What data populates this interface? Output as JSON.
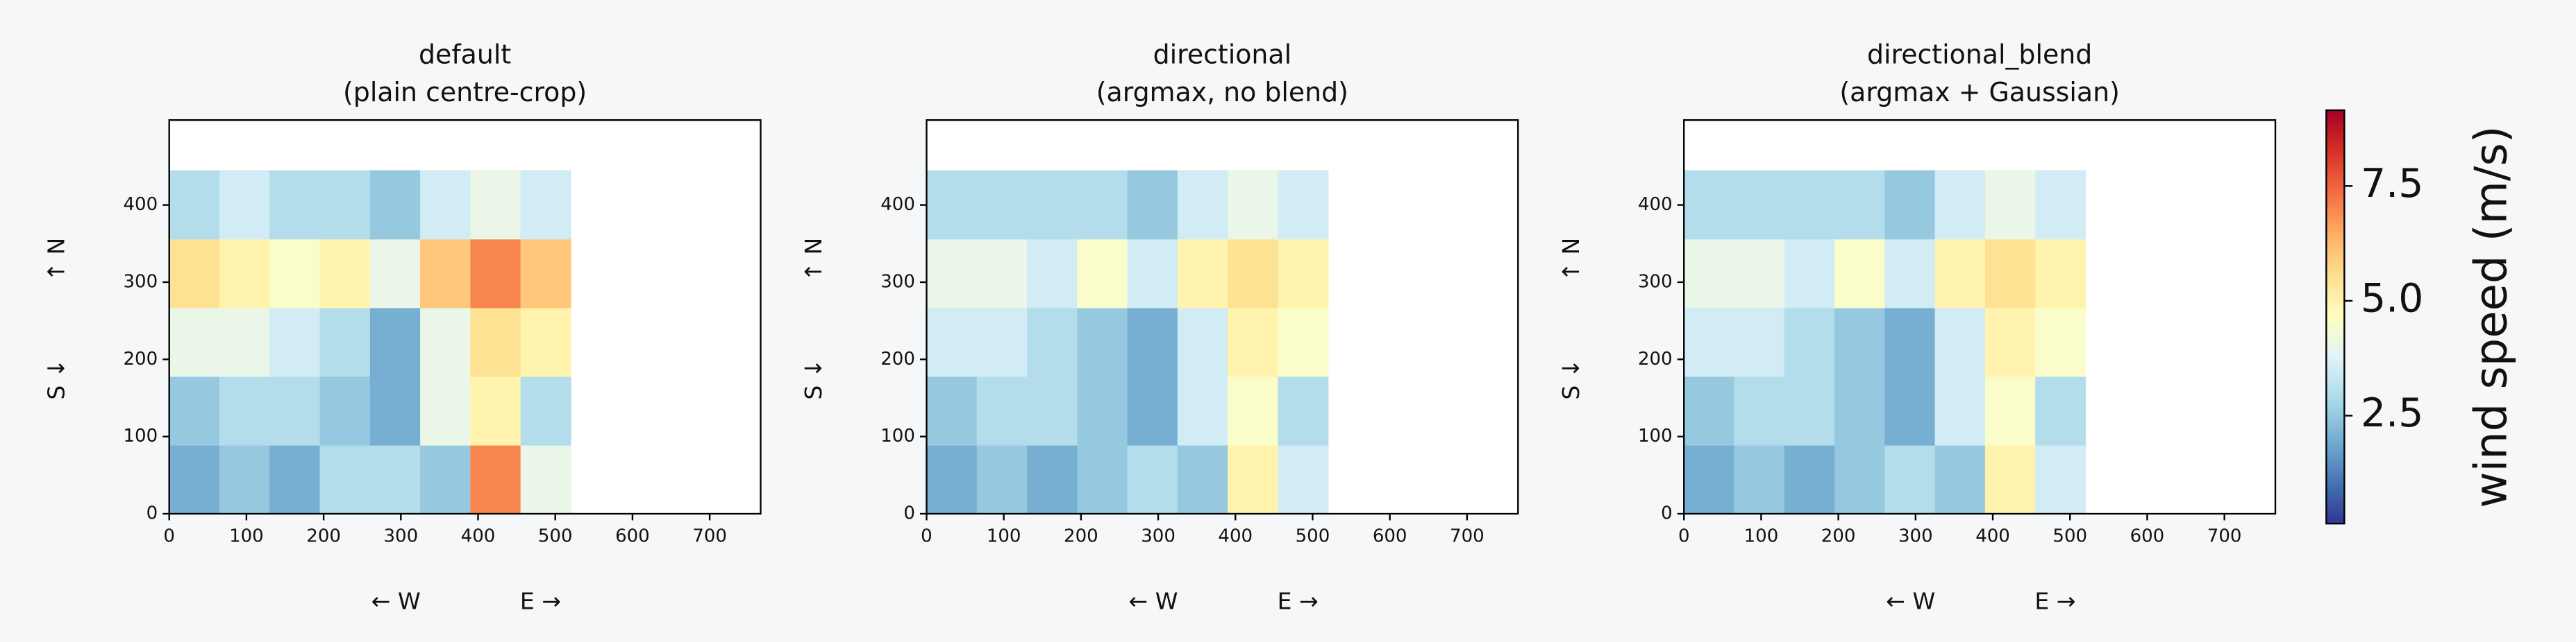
{
  "chart_data": [
    {
      "type": "heatmap",
      "title": [
        "default",
        "(plain centre-crop)"
      ],
      "xlabels": [
        "← W",
        "E →"
      ],
      "ylabels": [
        "S ↓",
        "↑ N"
      ],
      "x": [
        32.5,
        97.5,
        162.5,
        227.5,
        292.5,
        357.5,
        422.5,
        487.5
      ],
      "y": [
        44.5,
        133.5,
        222.5,
        311.5,
        400.5
      ],
      "z": [
        [
          2,
          2.5,
          2,
          3,
          3,
          2.5,
          7,
          4
        ],
        [
          2.5,
          3,
          3,
          2.5,
          2,
          4,
          5,
          3
        ],
        [
          4,
          4,
          3.5,
          3,
          2,
          4,
          5.5,
          5
        ],
        [
          5.5,
          5,
          4.5,
          5,
          4,
          6,
          7,
          6
        ],
        [
          3,
          3.5,
          3,
          3,
          2.5,
          3.5,
          4,
          3.5
        ]
      ],
      "xlim": [
        0,
        766
      ],
      "ylim": [
        0,
        510
      ],
      "xticks": [
        0,
        100,
        200,
        300,
        400,
        500,
        600,
        700
      ],
      "yticks": [
        0,
        100,
        200,
        300,
        400
      ]
    },
    {
      "type": "heatmap",
      "title": [
        "directional",
        "(argmax, no blend)"
      ],
      "xlabels": [
        "← W",
        "E →"
      ],
      "ylabels": [
        "S ↓",
        "↑ N"
      ],
      "x": [
        32.5,
        97.5,
        162.5,
        227.5,
        292.5,
        357.5,
        422.5,
        487.5
      ],
      "y": [
        44.5,
        133.5,
        222.5,
        311.5,
        400.5
      ],
      "z": [
        [
          2,
          2.5,
          2,
          2.5,
          3,
          2.5,
          5,
          3.5
        ],
        [
          2.5,
          3,
          3,
          2.5,
          2,
          3.5,
          4.5,
          3
        ],
        [
          3.5,
          3.5,
          3,
          2.5,
          2,
          3.5,
          5,
          4.5
        ],
        [
          4,
          4,
          3.5,
          4.5,
          3.5,
          5,
          5.5,
          5
        ],
        [
          3,
          3,
          3,
          3,
          2.5,
          3.5,
          4,
          3.5
        ]
      ],
      "xlim": [
        0,
        766
      ],
      "ylim": [
        0,
        510
      ],
      "xticks": [
        0,
        100,
        200,
        300,
        400,
        500,
        600,
        700
      ],
      "yticks": [
        0,
        100,
        200,
        300,
        400
      ]
    },
    {
      "type": "heatmap",
      "title": [
        "directional_blend",
        "(argmax + Gaussian)"
      ],
      "xlabels": [
        "← W",
        "E →"
      ],
      "ylabels": [
        "S ↓",
        "↑ N"
      ],
      "x": [
        32.5,
        97.5,
        162.5,
        227.5,
        292.5,
        357.5,
        422.5,
        487.5
      ],
      "y": [
        44.5,
        133.5,
        222.5,
        311.5,
        400.5
      ],
      "z": [
        [
          2,
          2.5,
          2,
          2.5,
          3,
          2.5,
          5,
          3.5
        ],
        [
          2.5,
          3,
          3,
          2.5,
          2,
          3.5,
          4.5,
          3
        ],
        [
          3.5,
          3.5,
          3,
          2.5,
          2,
          3.5,
          5,
          4.5
        ],
        [
          4,
          4,
          3.5,
          4.5,
          3.5,
          5,
          5.5,
          5
        ],
        [
          3,
          3,
          3,
          3,
          2.5,
          3.5,
          4,
          3.5
        ]
      ],
      "xlim": [
        0,
        766
      ],
      "ylim": [
        0,
        510
      ],
      "xticks": [
        0,
        100,
        200,
        300,
        400,
        500,
        600,
        700
      ],
      "yticks": [
        0,
        100,
        200,
        300,
        400
      ]
    }
  ],
  "colorbar": {
    "label": "wind speed (m/s)",
    "lim": [
      0.15,
      9.15
    ],
    "ticks": [
      2.5,
      {
        "value": 5,
        "label": "5.0"
      },
      7.5
    ],
    "colors": [
      "#313695",
      "#4575b4",
      "#74add1",
      "#abd9e9",
      "#e0f3f8",
      "#ffffbf",
      "#fee090",
      "#fdae61",
      "#f46d43",
      "#d73027",
      "#a50026"
    ]
  }
}
